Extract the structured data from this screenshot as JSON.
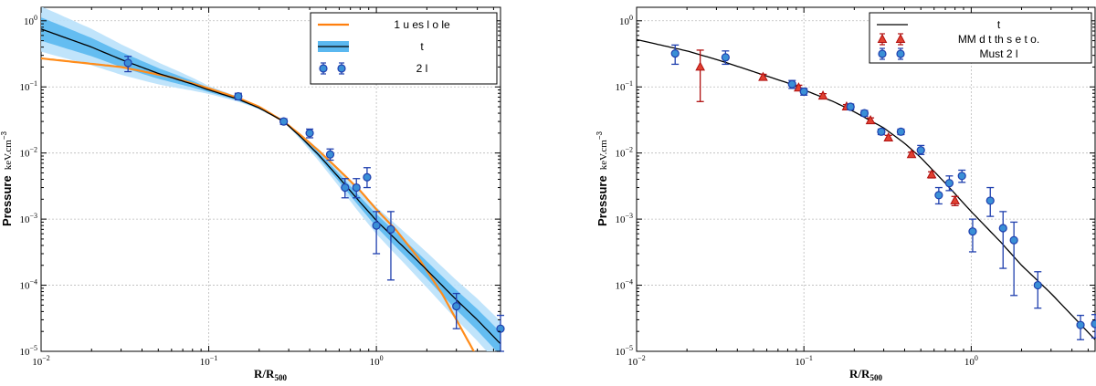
{
  "chart_data": [
    {
      "type": "scatter",
      "ylabel_bold": "Pressure",
      "ylabel_unit": "keV.cm",
      "ylabel_exp": "−3",
      "xlabel_main": "R/R",
      "xlabel_sub": "500",
      "xlim": [
        0.01,
        5.5
      ],
      "ylim": [
        1e-05,
        1.6
      ],
      "xscale": "log",
      "yscale": "log",
      "grid": true,
      "legend_position": "top-right",
      "x_ticks": [
        {
          "value": 0.01,
          "base": "10",
          "exp": "−2"
        },
        {
          "value": 0.1,
          "base": "10",
          "exp": "−1"
        },
        {
          "value": 1,
          "base": "10",
          "exp": "0"
        }
      ],
      "y_ticks": [
        {
          "value": 1e-05,
          "base": "10",
          "exp": "−5"
        },
        {
          "value": 0.0001,
          "base": "10",
          "exp": "−4"
        },
        {
          "value": 0.001,
          "base": "10",
          "exp": "−3"
        },
        {
          "value": 0.01,
          "base": "10",
          "exp": "−2"
        },
        {
          "value": 0.1,
          "base": "10",
          "exp": "−1"
        },
        {
          "value": 1,
          "base": "10",
          "exp": "0"
        }
      ],
      "legend": [
        {
          "kind": "line",
          "color": "#ff7f0e",
          "label": "1 u es l o le"
        },
        {
          "kind": "band-line",
          "color": "#000000",
          "band": "#5ab8f0",
          "label": "t"
        },
        {
          "kind": "errpoint",
          "color": "#1f3fae",
          "fill": "#3a8fd6",
          "label": "2 l"
        }
      ],
      "curves": [
        {
          "name": "orange",
          "color": "#ff8c1a",
          "x": [
            0.01,
            0.03,
            0.06,
            0.1,
            0.15,
            0.2,
            0.28,
            0.35,
            0.45,
            0.6,
            0.8,
            1.0,
            1.3,
            1.8,
            2.5,
            3.0,
            4.0
          ],
          "y": [
            0.27,
            0.2,
            0.14,
            0.095,
            0.068,
            0.05,
            0.03,
            0.019,
            0.011,
            0.0055,
            0.0027,
            0.0014,
            0.0007,
            0.00025,
            7e-05,
            3e-05,
            8e-06
          ]
        },
        {
          "name": "black",
          "color": "#000000",
          "x": [
            0.01,
            0.02,
            0.03,
            0.05,
            0.08,
            0.1,
            0.15,
            0.2,
            0.28,
            0.35,
            0.45,
            0.6,
            0.8,
            1.0,
            1.5,
            2.0,
            3.0,
            4.0,
            5.5
          ],
          "y": [
            0.75,
            0.4,
            0.26,
            0.16,
            0.11,
            0.09,
            0.065,
            0.048,
            0.03,
            0.018,
            0.0095,
            0.0042,
            0.0018,
            0.00095,
            0.00035,
            0.00017,
            6e-05,
            3e-05,
            1.3e-05
          ]
        }
      ],
      "band_outer_factor": [
        2.2,
        1.15,
        1.0,
        1.6,
        2.2
      ],
      "band_inner_factor": [
        1.5,
        1.08,
        1.0,
        1.25,
        1.5
      ],
      "band_x": [
        0.01,
        0.1,
        0.28,
        1.0,
        5.5
      ],
      "points": [
        {
          "series": "2 l",
          "x": 0.033,
          "y": 0.23,
          "lo": 0.17,
          "hi": 0.29
        },
        {
          "series": "2 l",
          "x": 0.15,
          "y": 0.072,
          "lo": 0.064,
          "hi": 0.08
        },
        {
          "series": "2 l",
          "x": 0.28,
          "y": 0.03,
          "lo": 0.027,
          "hi": 0.033
        },
        {
          "series": "2 l",
          "x": 0.4,
          "y": 0.02,
          "lo": 0.017,
          "hi": 0.023
        },
        {
          "series": "2 l",
          "x": 0.53,
          "y": 0.0095,
          "lo": 0.0078,
          "hi": 0.0115
        },
        {
          "series": "2 l",
          "x": 0.65,
          "y": 0.003,
          "lo": 0.0021,
          "hi": 0.0041
        },
        {
          "series": "2 l",
          "x": 0.76,
          "y": 0.003,
          "lo": 0.0021,
          "hi": 0.0041
        },
        {
          "series": "2 l",
          "x": 0.88,
          "y": 0.0043,
          "lo": 0.003,
          "hi": 0.006
        },
        {
          "series": "2 l",
          "x": 1.0,
          "y": 0.0008,
          "lo": 0.0003,
          "hi": 0.0013
        },
        {
          "series": "2 l",
          "x": 1.22,
          "y": 0.0007,
          "lo": 0.00012,
          "hi": 0.0013
        },
        {
          "series": "2 l",
          "x": 3.0,
          "y": 4.8e-05,
          "lo": 2.2e-05,
          "hi": 7.5e-05
        },
        {
          "series": "2 l",
          "x": 5.5,
          "y": 2.2e-05,
          "lo": 1e-05,
          "hi": 3.5e-05
        }
      ]
    },
    {
      "type": "scatter",
      "ylabel_bold": "Pressure",
      "ylabel_unit": "keV.cm",
      "ylabel_exp": "−3",
      "xlabel_main": "R/R",
      "xlabel_sub": "500",
      "xlim": [
        0.01,
        5.5
      ],
      "ylim": [
        1e-05,
        1.6
      ],
      "xscale": "log",
      "yscale": "log",
      "grid": true,
      "legend_position": "top-right",
      "x_ticks": [
        {
          "value": 0.01,
          "base": "10",
          "exp": "−2"
        },
        {
          "value": 0.1,
          "base": "10",
          "exp": "−1"
        },
        {
          "value": 1,
          "base": "10",
          "exp": "0"
        }
      ],
      "y_ticks": [
        {
          "value": 1e-05,
          "base": "10",
          "exp": "−5"
        },
        {
          "value": 0.0001,
          "base": "10",
          "exp": "−4"
        },
        {
          "value": 0.001,
          "base": "10",
          "exp": "−3"
        },
        {
          "value": 0.01,
          "base": "10",
          "exp": "−2"
        },
        {
          "value": 0.1,
          "base": "10",
          "exp": "−1"
        },
        {
          "value": 1,
          "base": "10",
          "exp": "0"
        }
      ],
      "legend": [
        {
          "kind": "line",
          "color": "#000000",
          "label": "t"
        },
        {
          "kind": "errtriangle",
          "color": "#b01010",
          "fill": "#e04030",
          "label": "MM d t    th s e t o."
        },
        {
          "kind": "errpoint",
          "color": "#1f3fae",
          "fill": "#3a8fd6",
          "label": "Must               2   l"
        }
      ],
      "curves": [
        {
          "name": "black",
          "color": "#000000",
          "x": [
            0.01,
            0.02,
            0.03,
            0.05,
            0.08,
            0.1,
            0.15,
            0.2,
            0.3,
            0.4,
            0.5,
            0.7,
            1.0,
            1.5,
            2.0,
            3.0,
            4.0,
            5.5
          ],
          "y": [
            0.52,
            0.35,
            0.26,
            0.17,
            0.115,
            0.09,
            0.06,
            0.042,
            0.024,
            0.014,
            0.0085,
            0.0035,
            0.0013,
            0.00045,
            0.0002,
            7.5e-05,
            3.5e-05,
            1.5e-05
          ]
        }
      ],
      "points_triangle": [
        {
          "series": "MM d t    th s e t o.",
          "x": 0.024,
          "y": 0.2,
          "lo": 0.06,
          "hi": 0.36
        },
        {
          "series": "MM d t    th s e t o.",
          "x": 0.057,
          "y": 0.14,
          "lo": 0.13,
          "hi": 0.155
        },
        {
          "series": "MM d t    th s e t o.",
          "x": 0.093,
          "y": 0.097,
          "lo": 0.088,
          "hi": 0.106
        },
        {
          "series": "MM d t    th s e t o.",
          "x": 0.13,
          "y": 0.073,
          "lo": 0.067,
          "hi": 0.079
        },
        {
          "series": "MM d t    th s e t o.",
          "x": 0.18,
          "y": 0.05,
          "lo": 0.046,
          "hi": 0.054
        },
        {
          "series": "MM d t    th s e t o.",
          "x": 0.25,
          "y": 0.031,
          "lo": 0.028,
          "hi": 0.034
        },
        {
          "series": "MM d t    th s e t o.",
          "x": 0.32,
          "y": 0.017,
          "lo": 0.0155,
          "hi": 0.0185
        },
        {
          "series": "MM d t    th s e t o.",
          "x": 0.44,
          "y": 0.0095,
          "lo": 0.0087,
          "hi": 0.0103
        },
        {
          "series": "MM d t    th s e t o.",
          "x": 0.58,
          "y": 0.0047,
          "lo": 0.0042,
          "hi": 0.0052
        },
        {
          "series": "MM d t    th s e t o.",
          "x": 0.8,
          "y": 0.0019,
          "lo": 0.0016,
          "hi": 0.0022
        }
      ],
      "points": [
        {
          "series": "Must               2   l",
          "x": 0.017,
          "y": 0.32,
          "lo": 0.22,
          "hi": 0.43
        },
        {
          "series": "Must               2   l",
          "x": 0.034,
          "y": 0.28,
          "lo": 0.22,
          "hi": 0.35
        },
        {
          "series": "Must               2   l",
          "x": 0.085,
          "y": 0.11,
          "lo": 0.095,
          "hi": 0.125
        },
        {
          "series": "Must               2   l",
          "x": 0.1,
          "y": 0.085,
          "lo": 0.075,
          "hi": 0.095
        },
        {
          "series": "Must               2   l",
          "x": 0.19,
          "y": 0.05,
          "lo": 0.045,
          "hi": 0.055
        },
        {
          "series": "Must               2   l",
          "x": 0.23,
          "y": 0.04,
          "lo": 0.036,
          "hi": 0.044
        },
        {
          "series": "Must               2   l",
          "x": 0.29,
          "y": 0.021,
          "lo": 0.019,
          "hi": 0.023
        },
        {
          "series": "Must               2   l",
          "x": 0.38,
          "y": 0.021,
          "lo": 0.019,
          "hi": 0.023
        },
        {
          "series": "Must               2   l",
          "x": 0.5,
          "y": 0.011,
          "lo": 0.0095,
          "hi": 0.013
        },
        {
          "series": "Must               2   l",
          "x": 0.64,
          "y": 0.0023,
          "lo": 0.0017,
          "hi": 0.003
        },
        {
          "series": "Must               2   l",
          "x": 0.74,
          "y": 0.0035,
          "lo": 0.0027,
          "hi": 0.0045
        },
        {
          "series": "Must               2   l",
          "x": 0.88,
          "y": 0.0045,
          "lo": 0.0036,
          "hi": 0.0055
        },
        {
          "series": "Must               2   l",
          "x": 1.02,
          "y": 0.00065,
          "lo": 0.00032,
          "hi": 0.001
        },
        {
          "series": "Must               2   l",
          "x": 1.3,
          "y": 0.0019,
          "lo": 0.0011,
          "hi": 0.003
        },
        {
          "series": "Must               2   l",
          "x": 1.55,
          "y": 0.00073,
          "lo": 0.00018,
          "hi": 0.0013
        },
        {
          "series": "Must               2   l",
          "x": 1.8,
          "y": 0.00048,
          "lo": 7e-05,
          "hi": 0.0009
        },
        {
          "series": "Must               2   l",
          "x": 2.5,
          "y": 0.0001,
          "lo": 4.5e-05,
          "hi": 0.00016
        },
        {
          "series": "Must               2   l",
          "x": 4.5,
          "y": 2.5e-05,
          "lo": 1.5e-05,
          "hi": 3.5e-05
        },
        {
          "series": "Must               2   l",
          "x": 5.5,
          "y": 2.6e-05,
          "lo": 1.6e-05,
          "hi": 3.6e-05
        }
      ]
    }
  ]
}
